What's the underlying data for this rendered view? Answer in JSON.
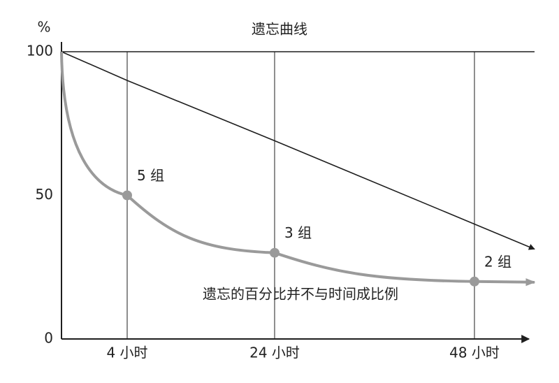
{
  "chart_data": {
    "type": "line",
    "title": "遗忘曲线",
    "y_label": "%",
    "categories": [
      null,
      "4 小时",
      "24 小时",
      "48 小时"
    ],
    "series": [
      {
        "color": "#1e1e1e",
        "values": [
          100,
          90,
          69,
          40
        ]
      },
      {
        "color": "#9a9a9a",
        "values": [
          100,
          50,
          30,
          20
        ],
        "point_labels": [
          null,
          "5 组",
          "3 组",
          "2 组"
        ]
      }
    ],
    "annotation": "遗忘的百分比并不与时间成比例",
    "ylim": [
      0,
      100
    ],
    "yticks": [
      0,
      50,
      100
    ]
  }
}
